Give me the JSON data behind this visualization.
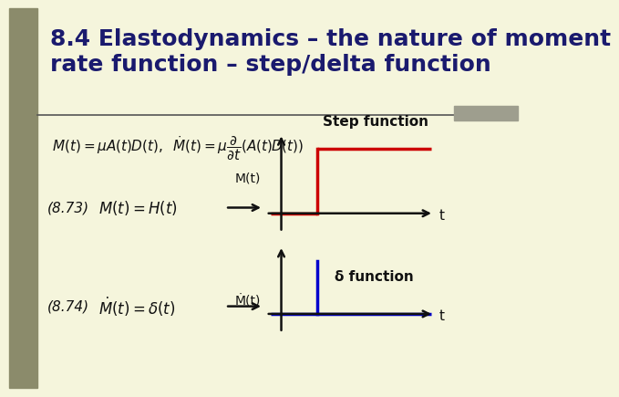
{
  "title": "8.4 Elastodynamics – the nature of moment\nrate function – step/delta function",
  "title_fontsize": 18,
  "title_fontweight": "bold",
  "title_color": "#1a1a6e",
  "bg_color": "#f5f5dc",
  "left_bar_color": "#8b8b6b",
  "header_bar_color": "#9e9e8e",
  "sep_line_color": "#555555",
  "step_color": "#cc0000",
  "delta_color": "#0000cc",
  "axis_color": "#111111",
  "formula_color": "#111111",
  "label_color": "#111111",
  "step_label": "Step function",
  "delta_label": "δ function",
  "eq873": "(8.73)",
  "eq874": "(8.74)",
  "mt_label": "M(t)",
  "mdot_label": "Ṁ(t)",
  "t_label": "t"
}
